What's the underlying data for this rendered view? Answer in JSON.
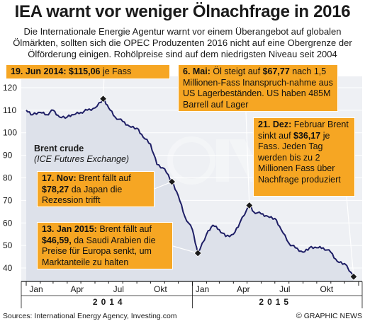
{
  "headline": "IEA warnt vor weniger Ölnachfrage in 2016",
  "subhead": "Die Internationale Energie Agentur warnt vor einem Überangebot auf globalen Ölmärkten, sollten sich die OPEC Produzenten 2016 nicht auf eine Obergrenze der Ölförderung einigen. Rohölpreise sind auf dem niedrigsten Niveau seit 2004",
  "series_label": {
    "line1": "Brent crude",
    "line2": "(ICE Futures Exchange)"
  },
  "annotations": {
    "jun2014": {
      "date": "19. Jun 2014:",
      "price": "$115,06",
      "text": " je Fass"
    },
    "mai2015": {
      "date": "6. Mai:",
      "text1": " Öl steigt auf ",
      "price": "$67,77",
      "text2": " nach 1,5 Millionen-Fass Inanspruch-nahme aus US Lagerbeständen. US haben 485M Barrell auf Lager"
    },
    "nov2014": {
      "date": "17. Nov:",
      "text1": " Brent fällt auf ",
      "price": "$78,27",
      "text2": " da Japan die Rezession trifft"
    },
    "jan2015": {
      "date": "13. Jan 2015:",
      "text1": " Brent fällt auf ",
      "price": "$46,59,",
      "text2": " da Saudi Arabien die Preise für Europa senkt, um Marktanteile zu halten"
    },
    "dez2015": {
      "date": "21. Dez:",
      "text1": " Februar Brent sinkt auf ",
      "price": "$36,17",
      "text2": " je Fass. Jeden Tag werden bis zu 2 Millionen Fass über Nachfrage produziert"
    }
  },
  "footer": {
    "sources": "Sources: International Energy Agency, Investing.com",
    "copyright": "©",
    "brand": "GRAPHIC NEWS"
  },
  "colors": {
    "orange": "#f6a623",
    "area": "#dde1ea",
    "plot_bg": "#eef0f4",
    "line": "#1f1f66",
    "marker": "#1a1a1a"
  },
  "chart_data": {
    "type": "area",
    "title": "",
    "xlabel": "",
    "ylabel": "",
    "ylim": [
      35,
      125
    ],
    "yticks": [
      40,
      50,
      60,
      70,
      80,
      90,
      100,
      110,
      120
    ],
    "x_tick_labels": [
      "Jan",
      "Apr",
      "Jul",
      "Okt",
      "Jan",
      "Apr",
      "Jul",
      "Okt"
    ],
    "x_years": [
      "2014",
      "2015"
    ],
    "grid": true,
    "legend": "none",
    "series": [
      {
        "name": "Brent crude",
        "x": [
          "2014-01-01",
          "2014-01-15",
          "2014-02-01",
          "2014-02-15",
          "2014-03-01",
          "2014-03-15",
          "2014-04-01",
          "2014-04-15",
          "2014-05-01",
          "2014-05-15",
          "2014-06-01",
          "2014-06-19",
          "2014-07-01",
          "2014-07-15",
          "2014-08-01",
          "2014-08-15",
          "2014-09-01",
          "2014-09-15",
          "2014-10-01",
          "2014-10-15",
          "2014-11-01",
          "2014-11-17",
          "2014-12-01",
          "2014-12-15",
          "2015-01-01",
          "2015-01-13",
          "2015-02-01",
          "2015-02-15",
          "2015-03-01",
          "2015-03-15",
          "2015-04-01",
          "2015-04-15",
          "2015-05-06",
          "2015-05-15",
          "2015-06-01",
          "2015-06-15",
          "2015-07-01",
          "2015-07-15",
          "2015-08-01",
          "2015-08-15",
          "2015-09-01",
          "2015-09-15",
          "2015-10-01",
          "2015-10-15",
          "2015-11-01",
          "2015-11-15",
          "2015-12-01",
          "2015-12-21"
        ],
        "values": [
          110,
          108,
          109,
          108,
          110,
          107,
          107,
          108,
          109,
          110,
          111,
          115.06,
          111,
          107,
          105,
          103,
          102,
          98,
          95,
          86,
          84,
          78.27,
          72,
          63,
          57,
          46.59,
          55,
          59,
          57,
          54,
          55,
          60,
          67.77,
          65,
          64,
          63,
          62,
          57,
          51,
          49,
          47,
          49,
          49,
          49,
          47,
          43,
          42,
          36.17
        ]
      }
    ],
    "markers": [
      {
        "x": "2014-06-19",
        "value": 115.06
      },
      {
        "x": "2014-11-17",
        "value": 78.27
      },
      {
        "x": "2015-01-13",
        "value": 46.59
      },
      {
        "x": "2015-05-06",
        "value": 67.77
      },
      {
        "x": "2015-12-21",
        "value": 36.17
      }
    ]
  }
}
